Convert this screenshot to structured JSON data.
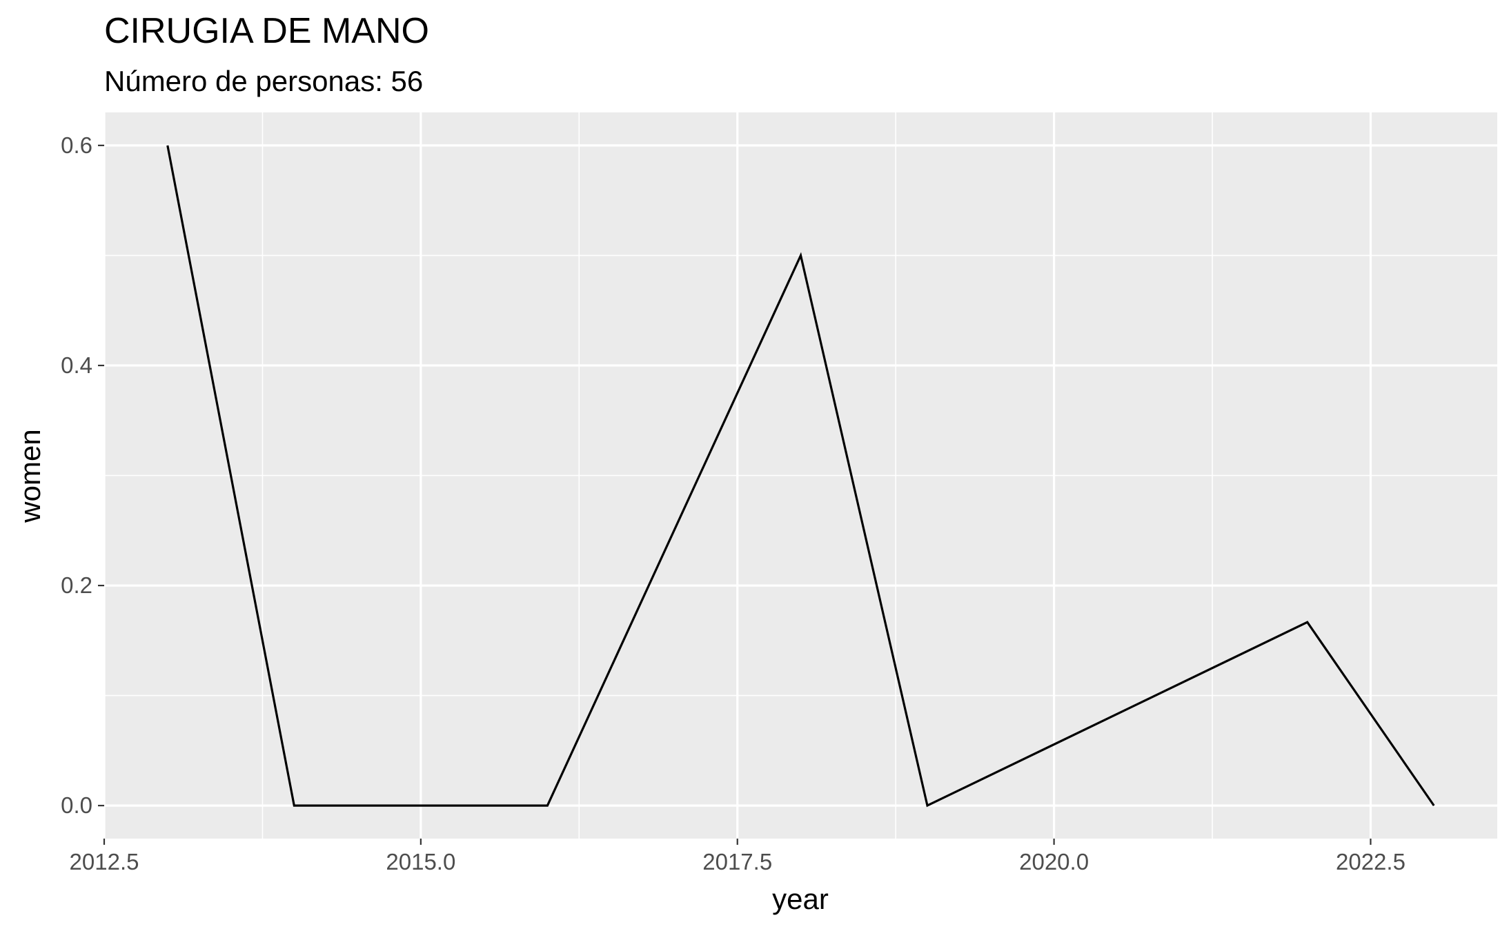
{
  "chart_data": {
    "type": "line",
    "title": "CIRUGIA DE MANO",
    "subtitle": "Número de personas: 56",
    "xlabel": "year",
    "ylabel": "women",
    "x": [
      2013,
      2014,
      2016,
      2018,
      2019,
      2022,
      2023
    ],
    "series": [
      {
        "values": [
          0.6,
          0.0,
          0.0,
          0.5,
          0.0,
          0.1667,
          0.0
        ]
      }
    ],
    "xlim": [
      2012.5,
      2023.5
    ],
    "ylim": [
      -0.03,
      0.63
    ],
    "xticks": [
      2012.5,
      2015.0,
      2017.5,
      2020.0,
      2022.5
    ],
    "xtick_labels": [
      "2012.5",
      "2015.0",
      "2017.5",
      "2020.0",
      "2022.5"
    ],
    "yticks": [
      0.0,
      0.2,
      0.4,
      0.6
    ],
    "ytick_labels": [
      "0.0",
      "0.2",
      "0.4",
      "0.6"
    ],
    "grid": true,
    "legend": "none",
    "colors": {
      "panel": "#ebebeb",
      "grid": "#ffffff",
      "line": "#000000",
      "tick_text": "#4d4d4d"
    }
  }
}
